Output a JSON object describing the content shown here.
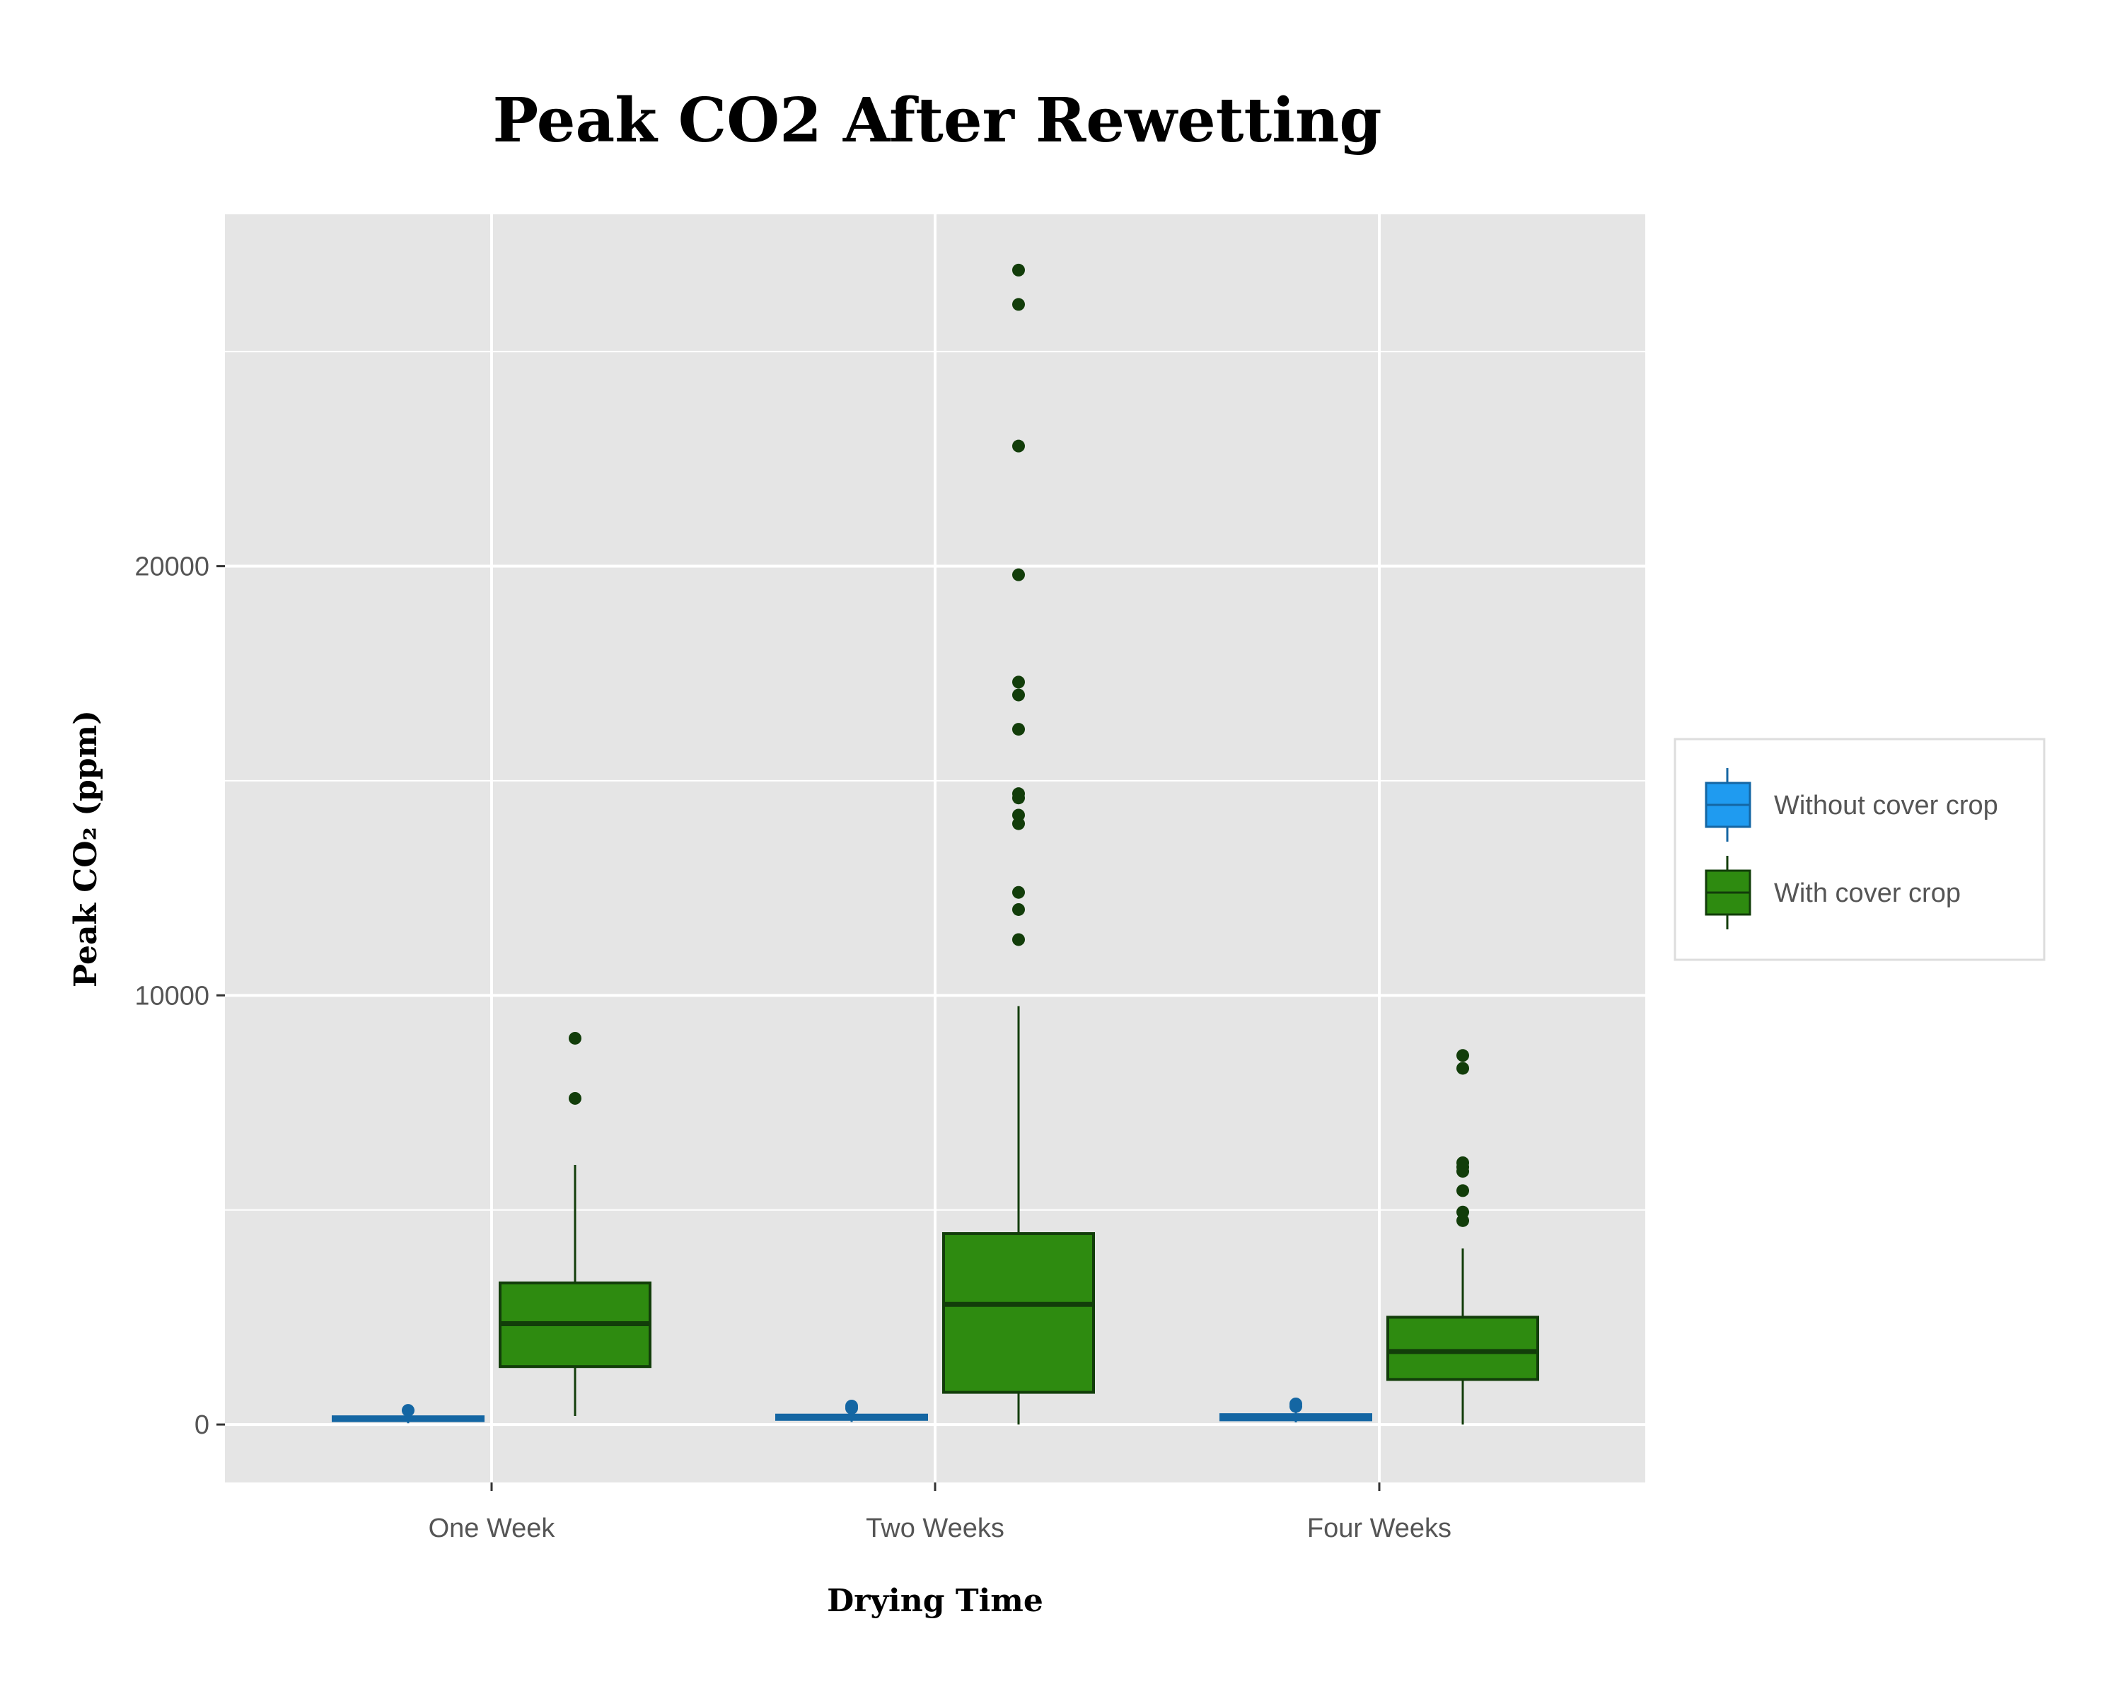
{
  "chart_data": {
    "type": "box",
    "title": "Peak CO2 After Rewetting",
    "xlabel": "Drying Time",
    "ylabel": "Peak CO₂ (ppm)",
    "categories": [
      "One Week",
      "Two Weeks",
      "Four Weeks"
    ],
    "ylim": [
      -1350,
      28200
    ],
    "y_ticks": [
      0,
      10000,
      20000
    ],
    "y_tick_labels": [
      "0",
      "10000",
      "20000"
    ],
    "grid": true,
    "legend": "right",
    "colors": {
      "panel": "#e5e5e5",
      "grid": "#ffffff",
      "without_fill": "#1f9bf0",
      "without_line": "#1466a3",
      "with_fill": "#2e8b10",
      "with_line": "#123d0a"
    },
    "series": [
      {
        "name": "Without cover crop",
        "boxes": [
          {
            "category": "One Week",
            "min": 30,
            "q1": 90,
            "median": 140,
            "q3": 180,
            "max": 230,
            "outliers": [
              330
            ]
          },
          {
            "category": "Two Weeks",
            "min": 60,
            "q1": 120,
            "median": 180,
            "q3": 220,
            "max": 300,
            "outliers": [
              380,
              430
            ]
          },
          {
            "category": "Four Weeks",
            "min": 50,
            "q1": 110,
            "median": 170,
            "q3": 230,
            "max": 300,
            "outliers": [
              420,
              480
            ]
          }
        ]
      },
      {
        "name": "With cover crop",
        "boxes": [
          {
            "category": "One Week",
            "min": 200,
            "q1": 1350,
            "median": 2350,
            "q3": 3300,
            "max": 6050,
            "outliers": [
              7600,
              9000
            ]
          },
          {
            "category": "Two Weeks",
            "min": 0,
            "q1": 750,
            "median": 2800,
            "q3": 4450,
            "max": 9750,
            "outliers": [
              11300,
              12000,
              12400,
              14000,
              14200,
              14600,
              14700,
              16200,
              17000,
              17300,
              19800,
              22800,
              26100,
              26900
            ]
          },
          {
            "category": "Four Weeks",
            "min": 0,
            "q1": 1050,
            "median": 1700,
            "q3": 2500,
            "max": 4100,
            "outliers": [
              4750,
              4950,
              5450,
              5900,
              6000,
              6100,
              8300,
              8600
            ]
          }
        ]
      }
    ]
  }
}
